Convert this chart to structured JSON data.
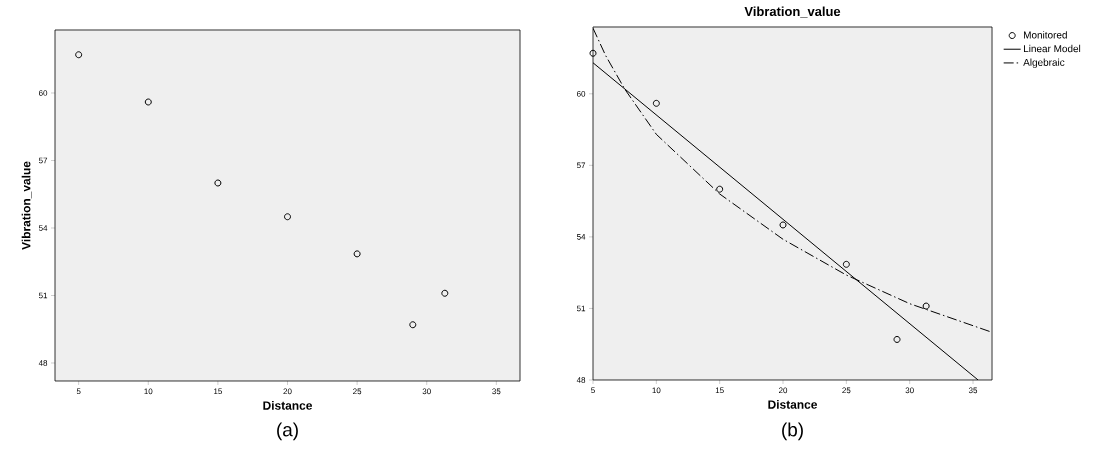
{
  "chart_data": [
    {
      "type": "scatter",
      "xlabel": "Distance",
      "ylabel": "Vibration_value",
      "color": "#000000",
      "marker": "circle",
      "x": [
        5,
        10,
        15,
        20,
        25,
        29,
        31.3
      ],
      "values": [
        61.7,
        59.6,
        56.0,
        54.5,
        52.85,
        49.7,
        51.1
      ],
      "xlim": [
        3.3,
        36.7
      ],
      "ylim": [
        47.2,
        62.8
      ],
      "xticks": [
        5,
        10,
        15,
        20,
        25,
        30,
        35
      ],
      "yticks": [
        48,
        51,
        54,
        57,
        60
      ],
      "annotations": [
        "(a)"
      ]
    },
    {
      "type": "scatter",
      "title": "Vibration_value",
      "xlabel": "Distance",
      "legend": "top right",
      "series": [
        {
          "name": "Monitored",
          "type": "scatter",
          "marker": "circle",
          "color": "#000000",
          "x": [
            5,
            10,
            15,
            20,
            25,
            29,
            31.3
          ],
          "values": [
            61.7,
            59.6,
            56.0,
            54.5,
            52.85,
            49.7,
            51.1
          ]
        },
        {
          "name": "Linear Model",
          "type": "line",
          "line_style": "solid",
          "color": "#000000",
          "x": [
            5,
            35.4
          ],
          "values": [
            61.3,
            48.0
          ]
        },
        {
          "name": "Algebraic",
          "type": "line",
          "line_style": "dashdot",
          "color": "#000000",
          "x": [
            5,
            6,
            7.5,
            10,
            15,
            20,
            25,
            30,
            36.5
          ],
          "values": [
            62.75,
            61.6,
            60.2,
            58.3,
            55.8,
            53.9,
            52.4,
            51.2,
            50.0
          ]
        }
      ],
      "xlim": [
        5,
        36.5
      ],
      "ylim": [
        48,
        62.8
      ],
      "xticks": [
        5,
        10,
        15,
        20,
        25,
        30,
        35
      ],
      "yticks": [
        48,
        51,
        54,
        57,
        60
      ],
      "annotations": [
        "(b)"
      ]
    }
  ]
}
